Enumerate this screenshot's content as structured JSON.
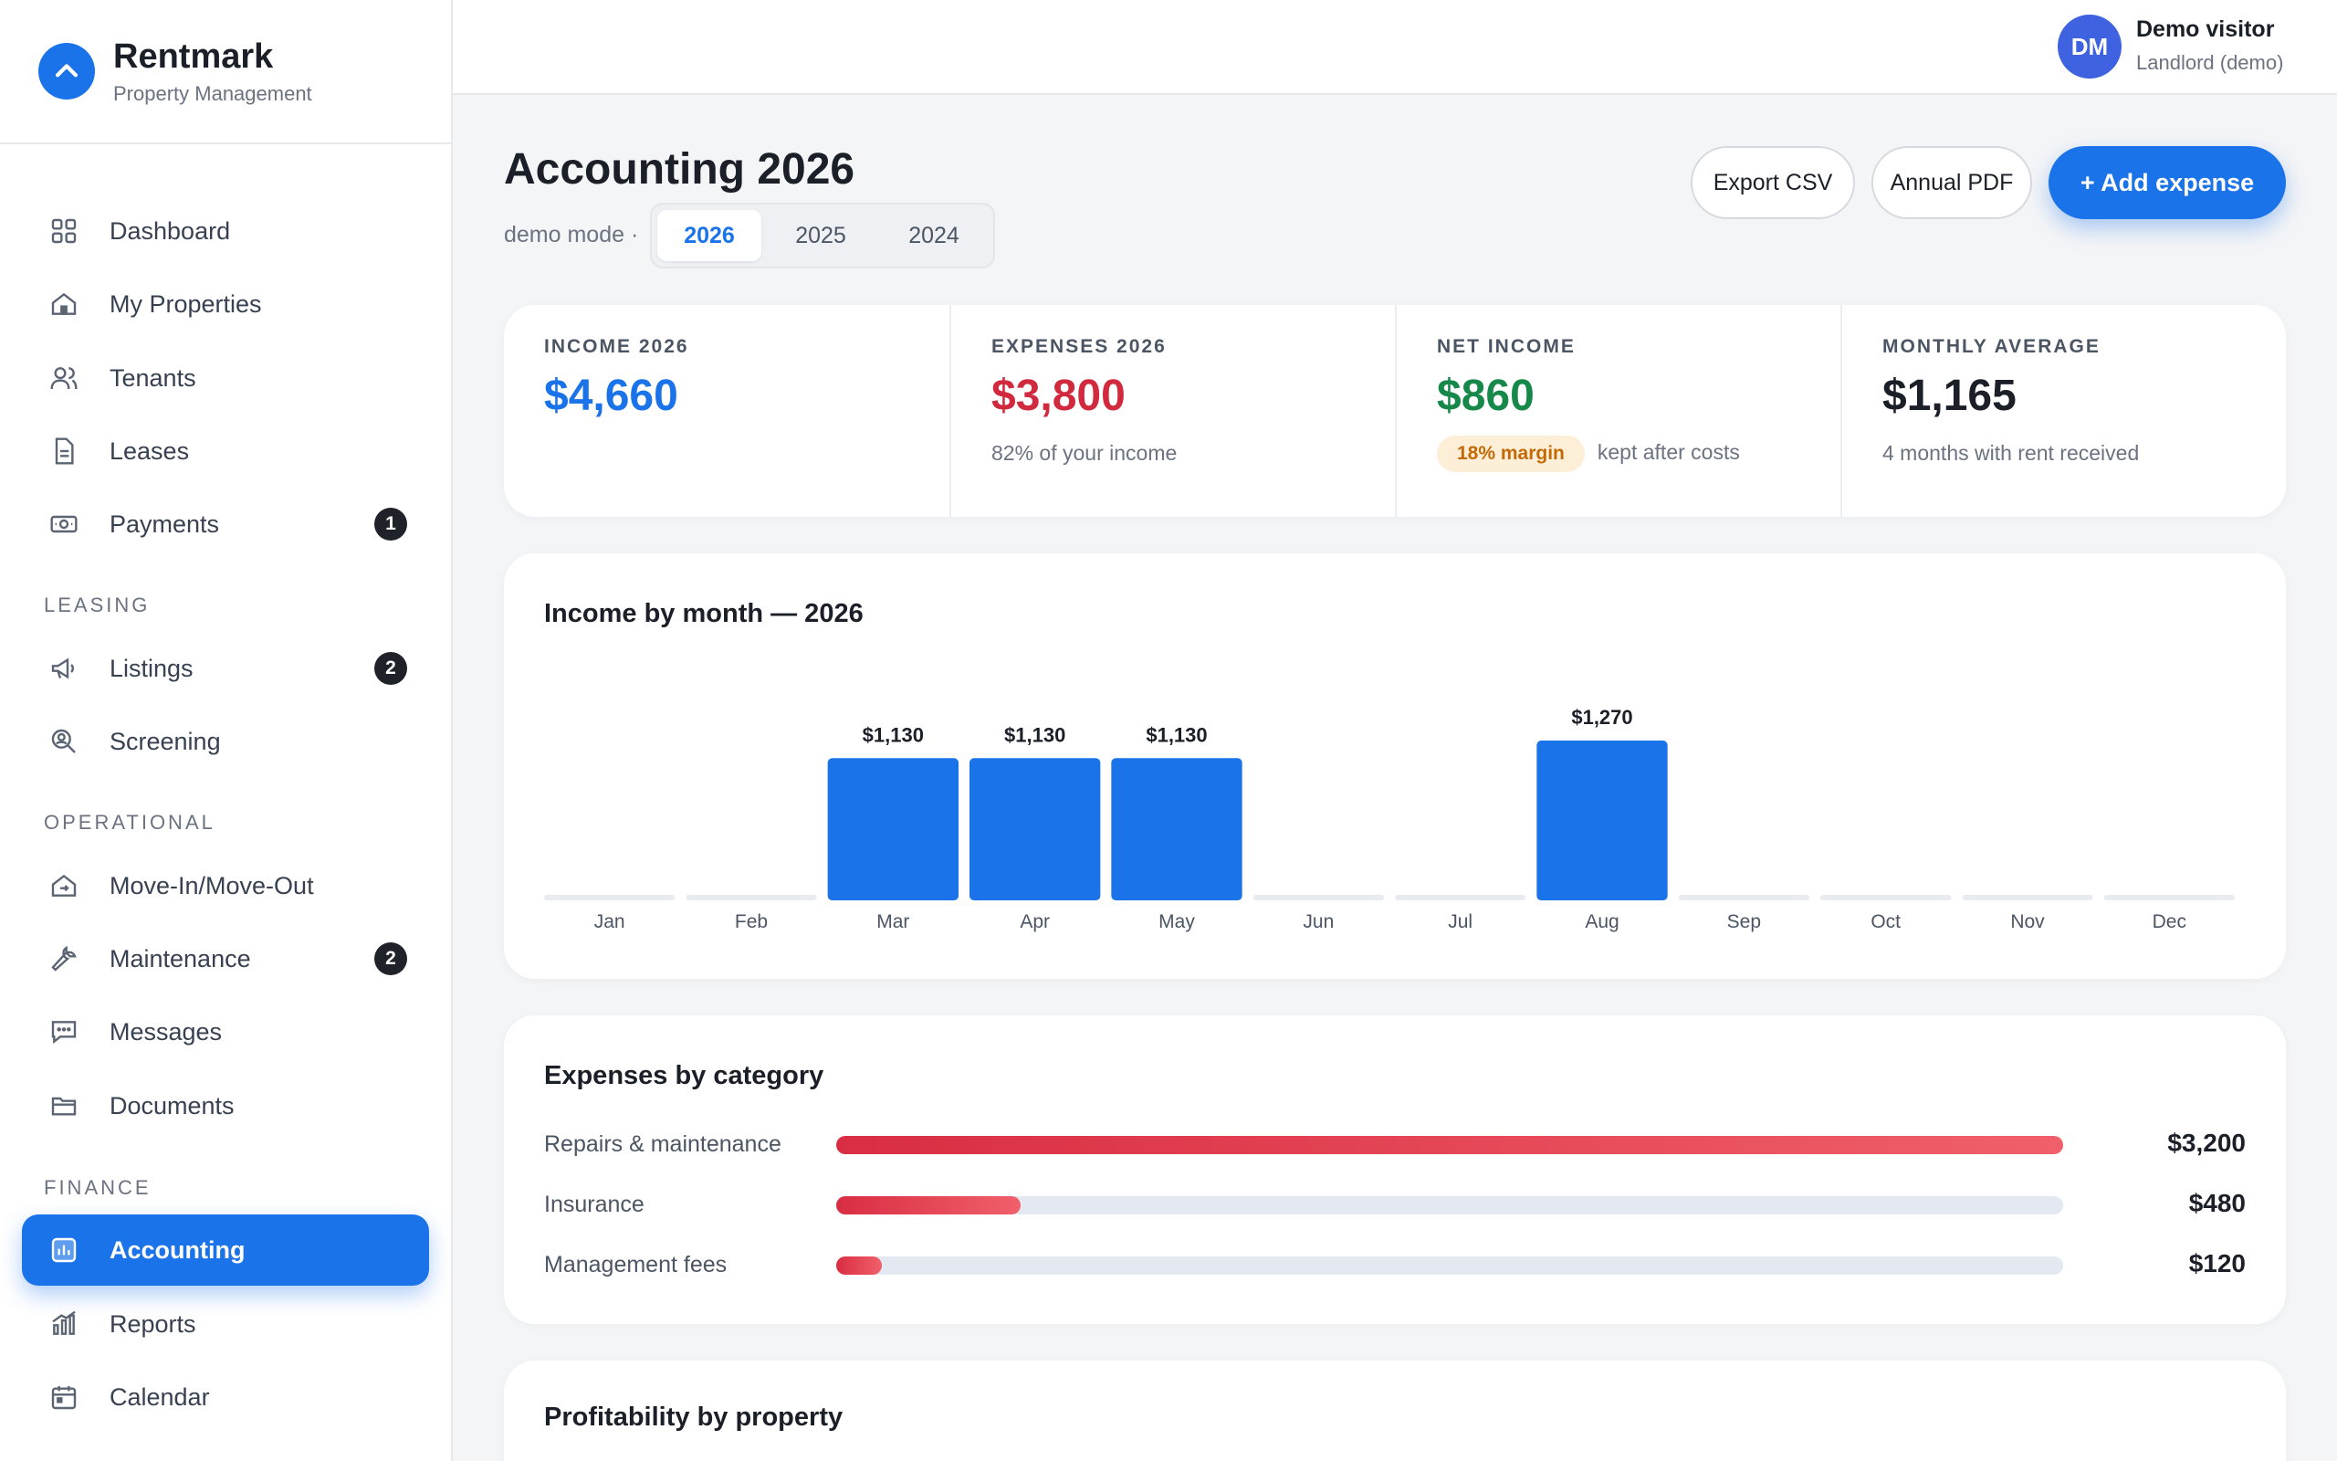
{
  "brand": {
    "name": "Rentmark",
    "subtitle": "Property Management"
  },
  "user": {
    "initials": "DM",
    "name": "Demo visitor",
    "role": "Landlord (demo)"
  },
  "sidebar": {
    "items": [
      {
        "label": "Dashboard",
        "icon": "grid-icon"
      },
      {
        "label": "My Properties",
        "icon": "home-icon"
      },
      {
        "label": "Tenants",
        "icon": "users-icon"
      },
      {
        "label": "Leases",
        "icon": "document-icon"
      },
      {
        "label": "Payments",
        "icon": "cash-icon",
        "badge": "1"
      }
    ],
    "sections": {
      "leasing": "LEASING",
      "operational": "OPERATIONAL",
      "finance": "FINANCE"
    },
    "leasing_items": [
      {
        "label": "Listings",
        "icon": "megaphone-icon",
        "badge": "2"
      },
      {
        "label": "Screening",
        "icon": "user-search-icon"
      }
    ],
    "operational_items": [
      {
        "label": "Move-In/Move-Out",
        "icon": "home-move-icon"
      },
      {
        "label": "Maintenance",
        "icon": "wrench-icon",
        "badge": "2"
      },
      {
        "label": "Messages",
        "icon": "chat-icon"
      },
      {
        "label": "Documents",
        "icon": "folder-icon"
      }
    ],
    "finance_items": [
      {
        "label": "Accounting",
        "icon": "accounting-icon",
        "active": true
      },
      {
        "label": "Reports",
        "icon": "bar-chart-icon"
      },
      {
        "label": "Calendar",
        "icon": "calendar-icon"
      }
    ]
  },
  "page": {
    "title": "Accounting 2026",
    "mode_label": "demo mode ·",
    "years": [
      "2026",
      "2025",
      "2024"
    ],
    "selected_year": "2026",
    "buttons": {
      "export_csv": "Export CSV",
      "annual_pdf": "Annual PDF",
      "add_expense": "+ Add expense"
    }
  },
  "stats": [
    {
      "label": "INCOME 2026",
      "value": "$4,660",
      "color": "#1a73e8",
      "sub": ""
    },
    {
      "label": "EXPENSES 2026",
      "value": "$3,800",
      "color": "#d1293d",
      "sub": "82% of your income"
    },
    {
      "label": "NET INCOME",
      "value": "$860",
      "color": "#16884a",
      "pill": "18% margin",
      "sub": "kept after costs"
    },
    {
      "label": "MONTHLY AVERAGE",
      "value": "$1,165",
      "color": "#1b1f27",
      "sub": "4 months with rent received"
    }
  ],
  "income_chart": {
    "title": "Income by month — 2026"
  },
  "chart_data": {
    "type": "bar",
    "title": "Income by month — 2026",
    "categories": [
      "Jan",
      "Feb",
      "Mar",
      "Apr",
      "May",
      "Jun",
      "Jul",
      "Aug",
      "Sep",
      "Oct",
      "Nov",
      "Dec"
    ],
    "values": [
      0,
      0,
      1130,
      1130,
      1130,
      0,
      0,
      1270,
      0,
      0,
      0,
      0
    ],
    "value_labels": [
      "",
      "",
      "$1,130",
      "$1,130",
      "$1,130",
      "",
      "",
      "$1,270",
      "",
      "",
      "",
      ""
    ],
    "xlabel": "",
    "ylabel": "",
    "grid": false,
    "bar_color": "#1a73e8"
  },
  "expenses": {
    "title": "Expenses by category",
    "items": [
      {
        "label": "Repairs & maintenance",
        "amount": 3200,
        "amount_label": "$3,200"
      },
      {
        "label": "Insurance",
        "amount": 480,
        "amount_label": "$480"
      },
      {
        "label": "Management fees",
        "amount": 120,
        "amount_label": "$120"
      }
    ]
  },
  "profitability": {
    "title": "Profitability by property"
  }
}
